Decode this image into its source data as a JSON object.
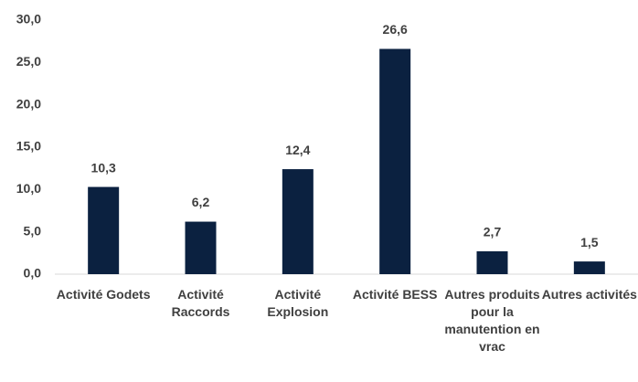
{
  "chart_data": {
    "type": "bar",
    "categories": [
      "Activité Godets",
      "Activité Raccords",
      "Activité Explosion",
      "Activité BESS",
      "Autres produits pour la manutention en vrac",
      "Autres activités"
    ],
    "values": [
      10.3,
      6.2,
      12.4,
      26.6,
      2.7,
      1.5
    ],
    "value_labels": [
      "10,3",
      "6,2",
      "12,4",
      "26,6",
      "2,7",
      "1,5"
    ],
    "color": "#0b2140",
    "ylim": [
      0,
      30
    ],
    "yticks": [
      {
        "value": 0,
        "label": "0,0"
      },
      {
        "value": 5,
        "label": "5,0"
      },
      {
        "value": 10,
        "label": "10,0"
      },
      {
        "value": 15,
        "label": "15,0"
      },
      {
        "value": 20,
        "label": "20,0"
      },
      {
        "value": 25,
        "label": "25,0"
      },
      {
        "value": 30,
        "label": "30,0"
      }
    ],
    "grid": false
  }
}
